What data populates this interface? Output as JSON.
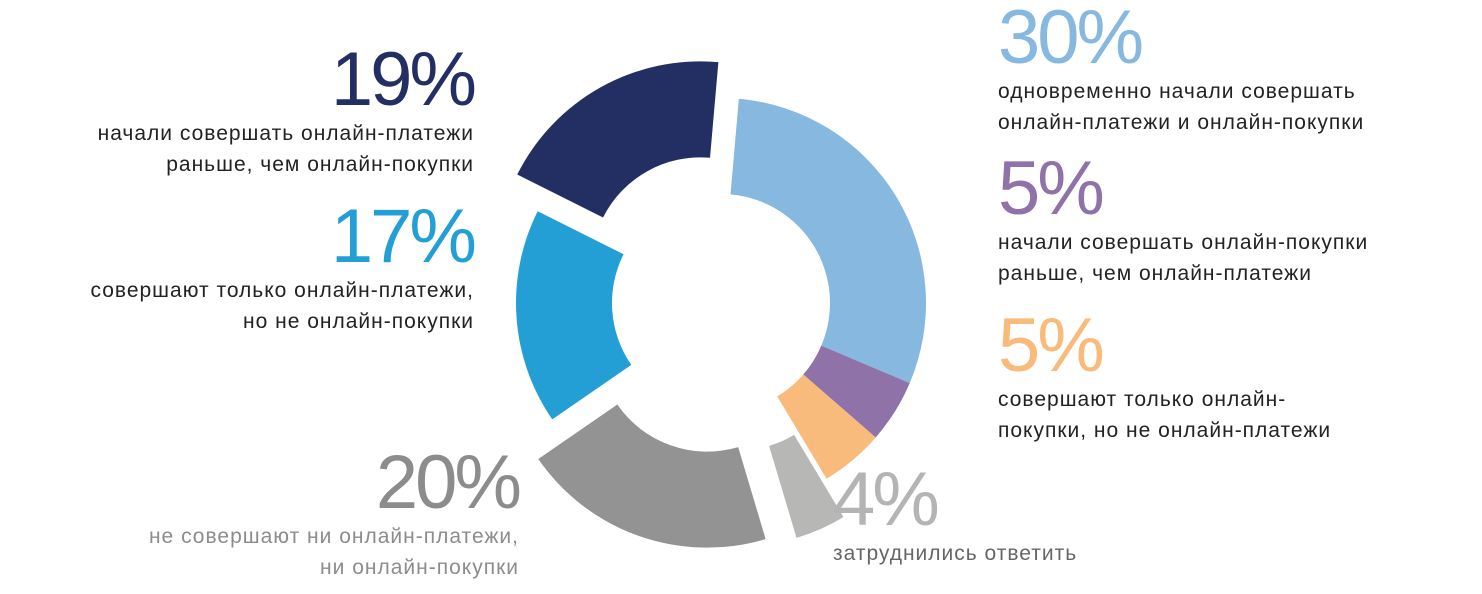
{
  "chart_data": {
    "type": "pie",
    "variant": "donut-exploded",
    "slices": [
      {
        "key": "s30",
        "value": 30,
        "percent_label": "30%",
        "line1": "одновременно начали совершать",
        "line2": "онлайн-платежи и онлайн-покупки",
        "color": "#86b8e0",
        "exploded": false
      },
      {
        "key": "s5a",
        "value": 5,
        "percent_label": "5%",
        "line1": "начали совершать онлайн-покупки",
        "line2": "раньше, чем онлайн-платежи",
        "color": "#8f73a8",
        "exploded": false
      },
      {
        "key": "s5b",
        "value": 5,
        "percent_label": "5%",
        "line1": "совершают только онлайн-",
        "line2": "покупки, но не онлайн-платежи",
        "color": "#f8bb7c",
        "exploded": false
      },
      {
        "key": "s4",
        "value": 4,
        "percent_label": "4%",
        "line1": "затруднились ответить",
        "line2": "",
        "color": "#b7b7b5",
        "exploded": true
      },
      {
        "key": "s20",
        "value": 20,
        "percent_label": "20%",
        "line1": "не совершают ни онлайн-платежи,",
        "line2": "ни онлайн-покупки",
        "color": "#939393",
        "exploded": true
      },
      {
        "key": "s17",
        "value": 17,
        "percent_label": "17%",
        "line1": "совершают только онлайн-платежи,",
        "line2": "но не онлайн-покупки",
        "color": "#239fd6",
        "exploded": false
      },
      {
        "key": "s19",
        "value": 19,
        "percent_label": "19%",
        "line1": "начали совершать онлайн-платежи",
        "line2": "раньше, чем онлайн-покупки",
        "color": "#232e63",
        "exploded": true
      }
    ]
  }
}
